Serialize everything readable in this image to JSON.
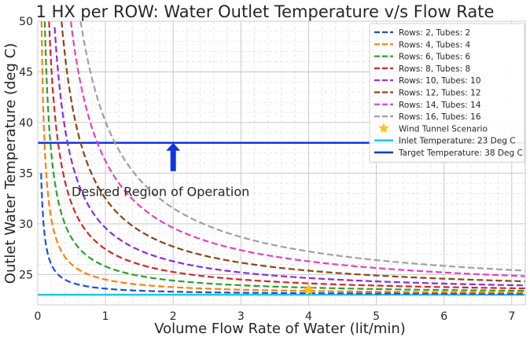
{
  "chart_data": {
    "type": "line",
    "title": "1 HX per ROW: Water Outlet Temperature v/s Flow Rate",
    "xlabel": "Volume Flow Rate of Water (lit/min)",
    "ylabel": "Outlet Water Temperature (deg C)",
    "xlim": [
      0,
      7.2
    ],
    "ylim": [
      22,
      50
    ],
    "xticks": [
      0,
      1,
      2,
      3,
      4,
      5,
      6,
      7
    ],
    "yticks": [
      25,
      30,
      35,
      40,
      45,
      50
    ],
    "grid": true,
    "legend_position": "top-right",
    "inlet_temperature": 23,
    "series": [
      {
        "name": "Rows: 2, Tubes: 2",
        "color": "#1f4fd6",
        "k": 0.6,
        "x_start": 0.05
      },
      {
        "name": "Rows: 4, Tubes: 4",
        "color": "#ff7f0e",
        "k": 1.5,
        "x_start": 0.05
      },
      {
        "name": "Rows: 6, Tubes: 6",
        "color": "#2ca02c",
        "k": 2.8,
        "x_start": 0.1
      },
      {
        "name": "Rows: 8, Tubes: 8",
        "color": "#d62728",
        "k": 4.5,
        "x_start": 0.15
      },
      {
        "name": "Rows: 10, Tubes: 10",
        "color": "#8a2be2",
        "k": 6.6,
        "x_start": 0.25
      },
      {
        "name": "Rows: 12, Tubes: 12",
        "color": "#8b4513",
        "k": 9.5,
        "x_start": 0.35
      },
      {
        "name": "Rows: 14, Tubes: 14",
        "color": "#e83fbf",
        "k": 13.2,
        "x_start": 0.45
      },
      {
        "name": "Rows: 16, Tubes: 16",
        "color": "#a0a0a0",
        "k": 17.1,
        "x_start": 0.6
      }
    ],
    "reference_lines": [
      {
        "name": "Inlet Temperature: 23 Deg C",
        "y": 23,
        "color": "#22c6e6"
      },
      {
        "name": "Target Temperature: 38 Deg C",
        "y": 38,
        "color": "#1036e0"
      }
    ],
    "scenario_point": {
      "name": "Wind Tunnel Scenario",
      "x": 4,
      "y": 23.5,
      "color": "#ffc020"
    },
    "annotations": [
      {
        "text": "Desired Region of Operation",
        "x": 0.5,
        "y": 33.2
      }
    ],
    "arrow": {
      "x": 2,
      "y_from": 35.2,
      "y_to": 38,
      "color": "#1036e0"
    }
  }
}
